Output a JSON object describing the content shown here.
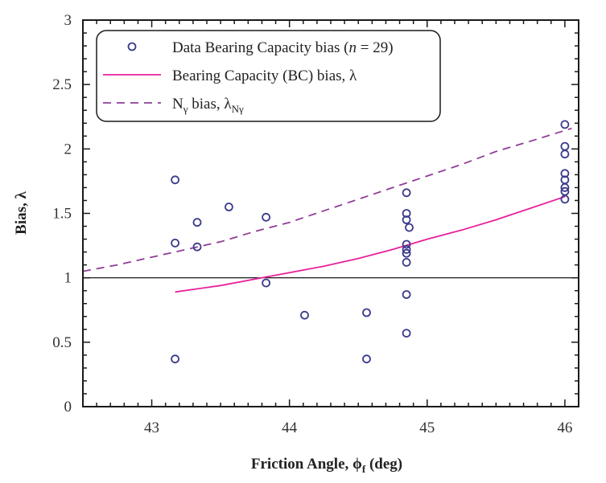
{
  "chart_data": {
    "type": "scatter",
    "title": "",
    "xlabel": "Friction Angle, ϕf (deg)",
    "ylabel": "Bias, λ",
    "xlim": [
      42.5,
      46.1
    ],
    "ylim": [
      0,
      3
    ],
    "xticks": [
      43,
      44,
      45,
      46
    ],
    "yticks": [
      0,
      0.5,
      1,
      1.5,
      2,
      2.5,
      3
    ],
    "xtick_labels": [
      "43",
      "44",
      "45",
      "46"
    ],
    "ytick_labels": [
      "0",
      "0.5",
      "1",
      "1.5",
      "2",
      "2.5",
      "3"
    ],
    "reference_line": {
      "y": 1,
      "color": "#000000"
    },
    "legend_position": "top-left",
    "series": [
      {
        "name": "Data Bearing Capacity bias (n = 29)",
        "type": "scatter",
        "color": "#3a3a8c",
        "points": [
          [
            43.17,
            1.76
          ],
          [
            43.17,
            1.27
          ],
          [
            43.17,
            0.37
          ],
          [
            43.33,
            1.43
          ],
          [
            43.33,
            1.24
          ],
          [
            43.56,
            1.55
          ],
          [
            43.83,
            1.47
          ],
          [
            43.83,
            0.96
          ],
          [
            44.11,
            0.71
          ],
          [
            44.56,
            0.73
          ],
          [
            44.56,
            0.37
          ],
          [
            44.85,
            1.66
          ],
          [
            44.85,
            1.5
          ],
          [
            44.85,
            1.45
          ],
          [
            44.87,
            1.39
          ],
          [
            44.85,
            1.26
          ],
          [
            44.85,
            1.22
          ],
          [
            44.85,
            1.19
          ],
          [
            44.85,
            1.12
          ],
          [
            44.85,
            0.87
          ],
          [
            44.85,
            0.57
          ],
          [
            46.0,
            2.19
          ],
          [
            46.0,
            2.02
          ],
          [
            46.0,
            1.96
          ],
          [
            46.0,
            1.81
          ],
          [
            46.0,
            1.76
          ],
          [
            46.0,
            1.7
          ],
          [
            46.0,
            1.67
          ],
          [
            46.0,
            1.61
          ]
        ]
      },
      {
        "name": "Bearing Capacity (BC) bias, λ",
        "type": "line",
        "style": "solid",
        "color": "#e8219b",
        "x": [
          43.17,
          43.5,
          43.75,
          44.0,
          44.25,
          44.5,
          44.75,
          45.0,
          45.25,
          45.5,
          45.75,
          46.0
        ],
        "y": [
          0.89,
          0.94,
          0.99,
          1.04,
          1.09,
          1.15,
          1.22,
          1.3,
          1.37,
          1.45,
          1.54,
          1.63
        ]
      },
      {
        "name": "Nγ bias, λNγ",
        "type": "line",
        "style": "dashed",
        "color": "#8e3e96",
        "x": [
          42.5,
          42.75,
          43.0,
          43.25,
          43.5,
          43.75,
          44.0,
          44.25,
          44.5,
          44.75,
          45.0,
          45.25,
          45.5,
          45.75,
          46.05
        ],
        "y": [
          1.05,
          1.1,
          1.16,
          1.22,
          1.28,
          1.36,
          1.43,
          1.52,
          1.61,
          1.7,
          1.79,
          1.88,
          1.98,
          2.06,
          2.16
        ]
      }
    ],
    "legend": {
      "entry1_prefix": "Data Bearing Capacity bias (",
      "entry1_n": "n",
      "entry1_suffix": " = 29)",
      "entry2": "Bearing Capacity (BC) bias, λ",
      "entry3_main": "N",
      "entry3_sub": "γ",
      "entry3_mid": " bias, λ",
      "entry3_sub2": "Nγ"
    },
    "axis_titles": {
      "x_main": "Friction Angle, ϕ",
      "x_sub": "f",
      "x_unit": " (deg)",
      "y": "Bias, λ"
    }
  }
}
